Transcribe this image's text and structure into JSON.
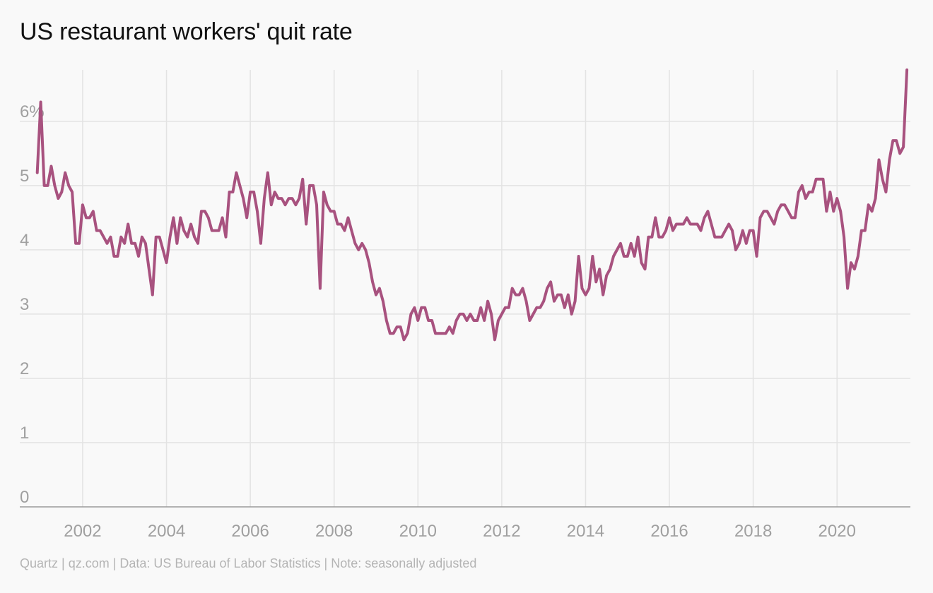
{
  "title": "US restaurant workers' quit rate",
  "footer": "Quartz | qz.com | Data: US Bureau of Labor Statistics | Note: seasonally adjusted",
  "colors": {
    "line": "#a8527f",
    "grid": "#e3e3e3",
    "axis": "#9a9a9a",
    "tick_label": "#a0a0a0",
    "title": "#111111",
    "footer": "#b4b4b4",
    "background": "#f9f9f9"
  },
  "chart_data": {
    "type": "line",
    "title": "US restaurant workers' quit rate",
    "xlabel": "",
    "ylabel": "",
    "xlim": [
      2000.5,
      2021.75
    ],
    "ylim": [
      0,
      6.8
    ],
    "x_ticks": [
      2002,
      2004,
      2006,
      2008,
      2010,
      2012,
      2014,
      2016,
      2018,
      2020
    ],
    "x_tick_labels": [
      "2002",
      "2004",
      "2006",
      "2008",
      "2010",
      "2012",
      "2014",
      "2016",
      "2018",
      "2020"
    ],
    "y_ticks": [
      0,
      1,
      2,
      3,
      4,
      5,
      6
    ],
    "y_tick_labels": [
      "0",
      "1",
      "2",
      "3",
      "4",
      "5",
      "6%"
    ],
    "grid": true,
    "legend": "none",
    "x_frequency": "monthly",
    "x_start": "2000-12",
    "series": [
      {
        "values": [
          5.2,
          6.3,
          5.0,
          5.0,
          5.3,
          5.0,
          4.8,
          4.9,
          5.2,
          5.0,
          4.9,
          4.1,
          4.1,
          4.7,
          4.5,
          4.5,
          4.6,
          4.3,
          4.3,
          4.2,
          4.1,
          4.2,
          3.9,
          3.9,
          4.2,
          4.1,
          4.4,
          4.1,
          4.1,
          3.9,
          4.2,
          4.1,
          3.7,
          3.3,
          4.2,
          4.2,
          4.0,
          3.8,
          4.2,
          4.5,
          4.1,
          4.5,
          4.3,
          4.2,
          4.4,
          4.2,
          4.1,
          4.6,
          4.6,
          4.5,
          4.3,
          4.3,
          4.3,
          4.5,
          4.2,
          4.9,
          4.9,
          5.2,
          5.0,
          4.8,
          4.5,
          4.9,
          4.9,
          4.6,
          4.1,
          4.8,
          5.2,
          4.7,
          4.9,
          4.8,
          4.8,
          4.7,
          4.8,
          4.8,
          4.7,
          4.8,
          5.1,
          4.4,
          5.0,
          5.0,
          4.7,
          3.4,
          4.9,
          4.7,
          4.6,
          4.6,
          4.4,
          4.4,
          4.3,
          4.5,
          4.3,
          4.1,
          4.0,
          4.1,
          4.0,
          3.8,
          3.5,
          3.3,
          3.4,
          3.2,
          2.9,
          2.7,
          2.7,
          2.8,
          2.8,
          2.6,
          2.7,
          3.0,
          3.1,
          2.9,
          3.1,
          3.1,
          2.9,
          2.9,
          2.7,
          2.7,
          2.7,
          2.7,
          2.8,
          2.7,
          2.9,
          3.0,
          3.0,
          2.9,
          3.0,
          2.9,
          2.9,
          3.1,
          2.9,
          3.2,
          3.0,
          2.6,
          2.9,
          3.0,
          3.1,
          3.1,
          3.4,
          3.3,
          3.3,
          3.4,
          3.2,
          2.9,
          3.0,
          3.1,
          3.1,
          3.2,
          3.4,
          3.5,
          3.2,
          3.3,
          3.3,
          3.1,
          3.3,
          3.0,
          3.2,
          3.9,
          3.4,
          3.3,
          3.4,
          3.9,
          3.5,
          3.7,
          3.3,
          3.6,
          3.7,
          3.9,
          4.0,
          4.1,
          3.9,
          3.9,
          4.1,
          3.9,
          4.2,
          3.8,
          3.7,
          4.2,
          4.2,
          4.5,
          4.2,
          4.2,
          4.3,
          4.5,
          4.3,
          4.4,
          4.4,
          4.4,
          4.5,
          4.4,
          4.4,
          4.4,
          4.3,
          4.5,
          4.6,
          4.4,
          4.2,
          4.2,
          4.2,
          4.3,
          4.4,
          4.3,
          4.0,
          4.1,
          4.3,
          4.1,
          4.3,
          4.3,
          3.9,
          4.5,
          4.6,
          4.6,
          4.5,
          4.4,
          4.6,
          4.7,
          4.7,
          4.6,
          4.5,
          4.5,
          4.9,
          5.0,
          4.8,
          4.9,
          4.9,
          5.1,
          5.1,
          5.1,
          4.6,
          4.9,
          4.6,
          4.8,
          4.6,
          4.2,
          3.4,
          3.8,
          3.7,
          3.9,
          4.3,
          4.3,
          4.7,
          4.6,
          4.8,
          5.4,
          5.1,
          4.9,
          5.4,
          5.7,
          5.7,
          5.5,
          5.6,
          6.8
        ]
      }
    ]
  }
}
